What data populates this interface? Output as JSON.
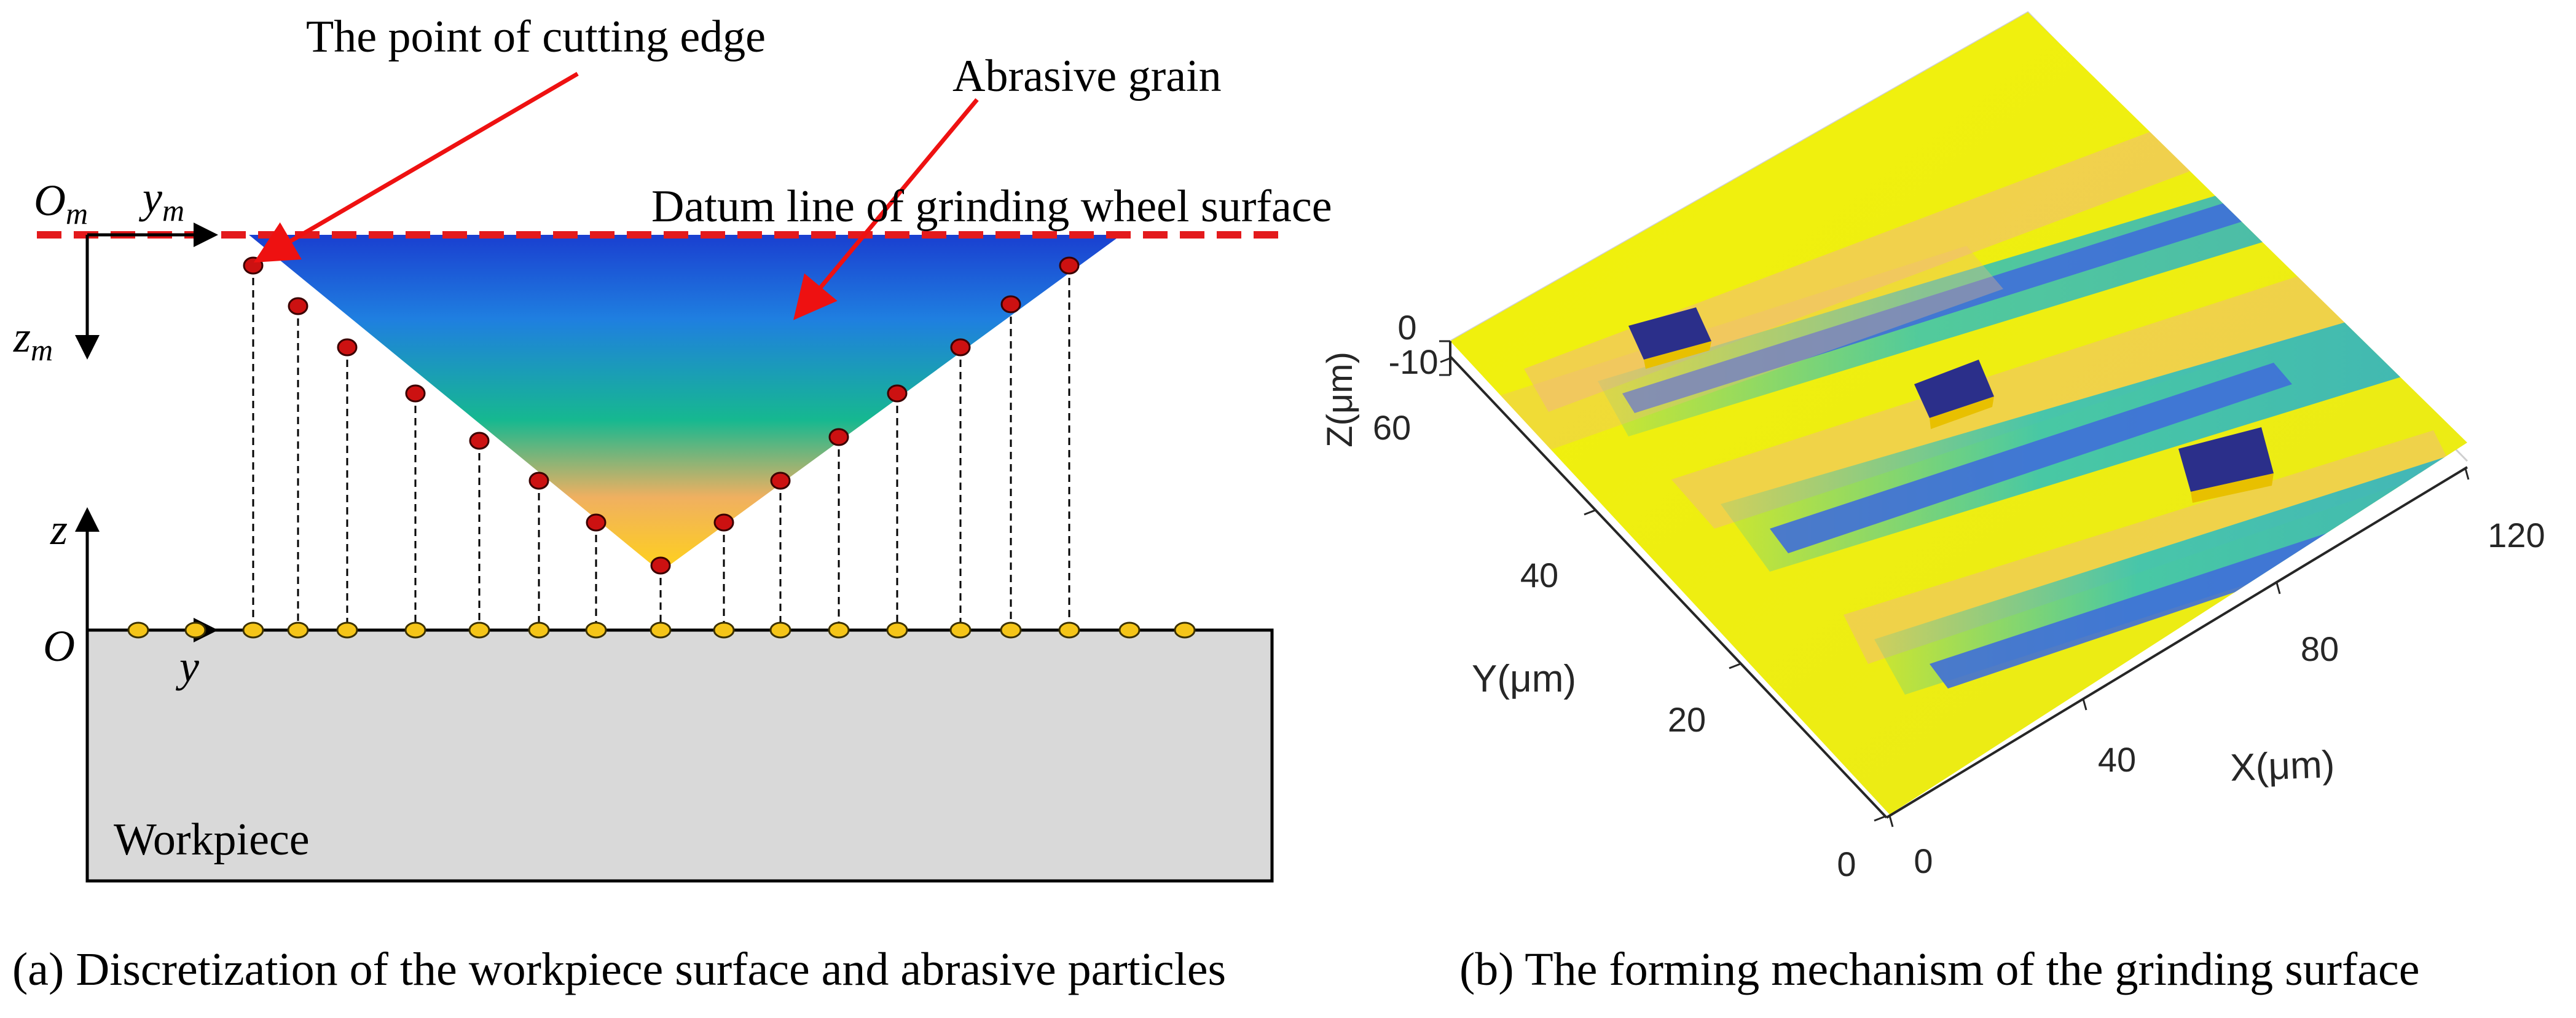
{
  "panel_a": {
    "caption": "(a) Discretization of the workpiece surface and abrasive particles",
    "label_cutting_edge": "The point of cutting edge",
    "label_abrasive_grain": "Abrasive grain",
    "label_datum_line": "Datum line of grinding wheel surface",
    "label_workpiece": "Workpiece",
    "axis_om": "O",
    "axis_om_sub": "m",
    "axis_ym": "y",
    "axis_ym_sub": "m",
    "axis_zm": "z",
    "axis_zm_sub": "m",
    "axis_z": "z",
    "axis_o": "O",
    "axis_y": "y",
    "colors": {
      "datum_line": "#e31a1c",
      "arrow": "#ee1111",
      "edge_point": "#cc1111",
      "surface_point": "#f5c518",
      "workpiece": "#d9d9d9",
      "grain_top": "#1a3fd0",
      "grain_mid": "#16b890",
      "grain_bottom": "#ffd21a"
    }
  },
  "panel_b": {
    "caption": "(b) The forming mechanism of  the grinding surface",
    "x_label": "X(μm)",
    "y_label": "Y(μm)",
    "z_label": "Z(μm)",
    "x_ticks": [
      "0",
      "40",
      "80",
      "120"
    ],
    "y_ticks": [
      "0",
      "20",
      "40",
      "60"
    ],
    "z_ticks": [
      "0",
      "-10"
    ],
    "colors": {
      "surface_high": "#f2f20a",
      "surface_mid": "#36c4b4",
      "groove": "#3f6fd8",
      "shadow": "#f2b880",
      "grain_cube": "#2b2f8a"
    }
  }
}
